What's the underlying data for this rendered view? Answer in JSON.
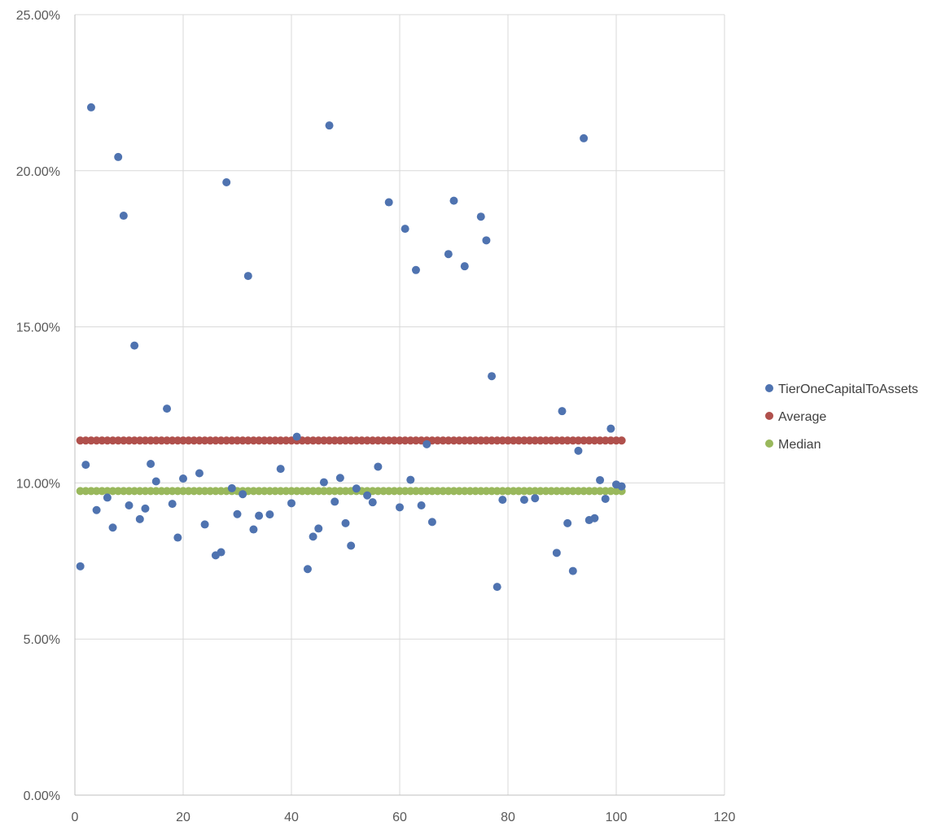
{
  "chart_data": {
    "type": "scatter",
    "title": "",
    "xlabel": "",
    "ylabel": "",
    "xlim": [
      0,
      120
    ],
    "ylim": [
      0,
      0.25
    ],
    "x_ticks": [
      0,
      20,
      40,
      60,
      80,
      100,
      120
    ],
    "y_ticks": [
      0,
      0.05,
      0.1,
      0.15,
      0.2,
      0.25
    ],
    "x_tick_labels": [
      "0",
      "20",
      "40",
      "60",
      "80",
      "100",
      "120"
    ],
    "y_tick_labels": [
      "0.00%",
      "5.00%",
      "10.00%",
      "15.00%",
      "20.00%",
      "25.00%"
    ],
    "grid": true,
    "legend_position": "right",
    "series": [
      {
        "name": "TierOneCapitalToAssets",
        "color": "#4f73b0",
        "points": [
          [
            1,
            0.0733
          ],
          [
            2,
            0.1058
          ],
          [
            3,
            0.2203
          ],
          [
            4,
            0.0913
          ],
          [
            6,
            0.0953
          ],
          [
            7,
            0.0857
          ],
          [
            8,
            0.2044
          ],
          [
            9,
            0.1856
          ],
          [
            10,
            0.0928
          ],
          [
            11,
            0.144
          ],
          [
            12,
            0.0884
          ],
          [
            13,
            0.0918
          ],
          [
            14,
            0.1061
          ],
          [
            15,
            0.1005
          ],
          [
            17,
            0.1238
          ],
          [
            18,
            0.0933
          ],
          [
            19,
            0.0825
          ],
          [
            20,
            0.1014
          ],
          [
            23,
            0.1031
          ],
          [
            24,
            0.0867
          ],
          [
            26,
            0.0768
          ],
          [
            27,
            0.0778
          ],
          [
            28,
            0.1963
          ],
          [
            29,
            0.0983
          ],
          [
            30,
            0.09
          ],
          [
            31,
            0.0964
          ],
          [
            32,
            0.1663
          ],
          [
            33,
            0.0851
          ],
          [
            34,
            0.0895
          ],
          [
            36,
            0.0899
          ],
          [
            38,
            0.1045
          ],
          [
            40,
            0.0935
          ],
          [
            41,
            0.1148
          ],
          [
            43,
            0.0724
          ],
          [
            44,
            0.0828
          ],
          [
            45,
            0.0854
          ],
          [
            46,
            0.1002
          ],
          [
            47,
            0.2145
          ],
          [
            48,
            0.094
          ],
          [
            49,
            0.1016
          ],
          [
            50,
            0.0871
          ],
          [
            51,
            0.0799
          ],
          [
            52,
            0.0982
          ],
          [
            54,
            0.096
          ],
          [
            55,
            0.0938
          ],
          [
            56,
            0.1052
          ],
          [
            58,
            0.1899
          ],
          [
            60,
            0.0922
          ],
          [
            61,
            0.1814
          ],
          [
            62,
            0.101
          ],
          [
            63,
            0.1682
          ],
          [
            64,
            0.0928
          ],
          [
            65,
            0.1124
          ],
          [
            66,
            0.0875
          ],
          [
            69,
            0.1733
          ],
          [
            70,
            0.1904
          ],
          [
            72,
            0.1694
          ],
          [
            75,
            0.1853
          ],
          [
            76,
            0.1777
          ],
          [
            77,
            0.1342
          ],
          [
            78,
            0.0667
          ],
          [
            79,
            0.0946
          ],
          [
            83,
            0.0946
          ],
          [
            85,
            0.0951
          ],
          [
            89,
            0.0776
          ],
          [
            90,
            0.123
          ],
          [
            91,
            0.0871
          ],
          [
            92,
            0.0718
          ],
          [
            93,
            0.1103
          ],
          [
            94,
            0.2104
          ],
          [
            95,
            0.0881
          ],
          [
            96,
            0.0887
          ],
          [
            97,
            0.1009
          ],
          [
            98,
            0.0949
          ],
          [
            99,
            0.1174
          ],
          [
            100,
            0.0995
          ],
          [
            101,
            0.0989
          ]
        ]
      },
      {
        "name": "Average",
        "color": "#b0504c",
        "x_start": 1,
        "x_end": 101,
        "value": 0.1136
      },
      {
        "name": "Median",
        "color": "#99b85c",
        "x_start": 1,
        "x_end": 101,
        "value": 0.0974
      }
    ]
  }
}
